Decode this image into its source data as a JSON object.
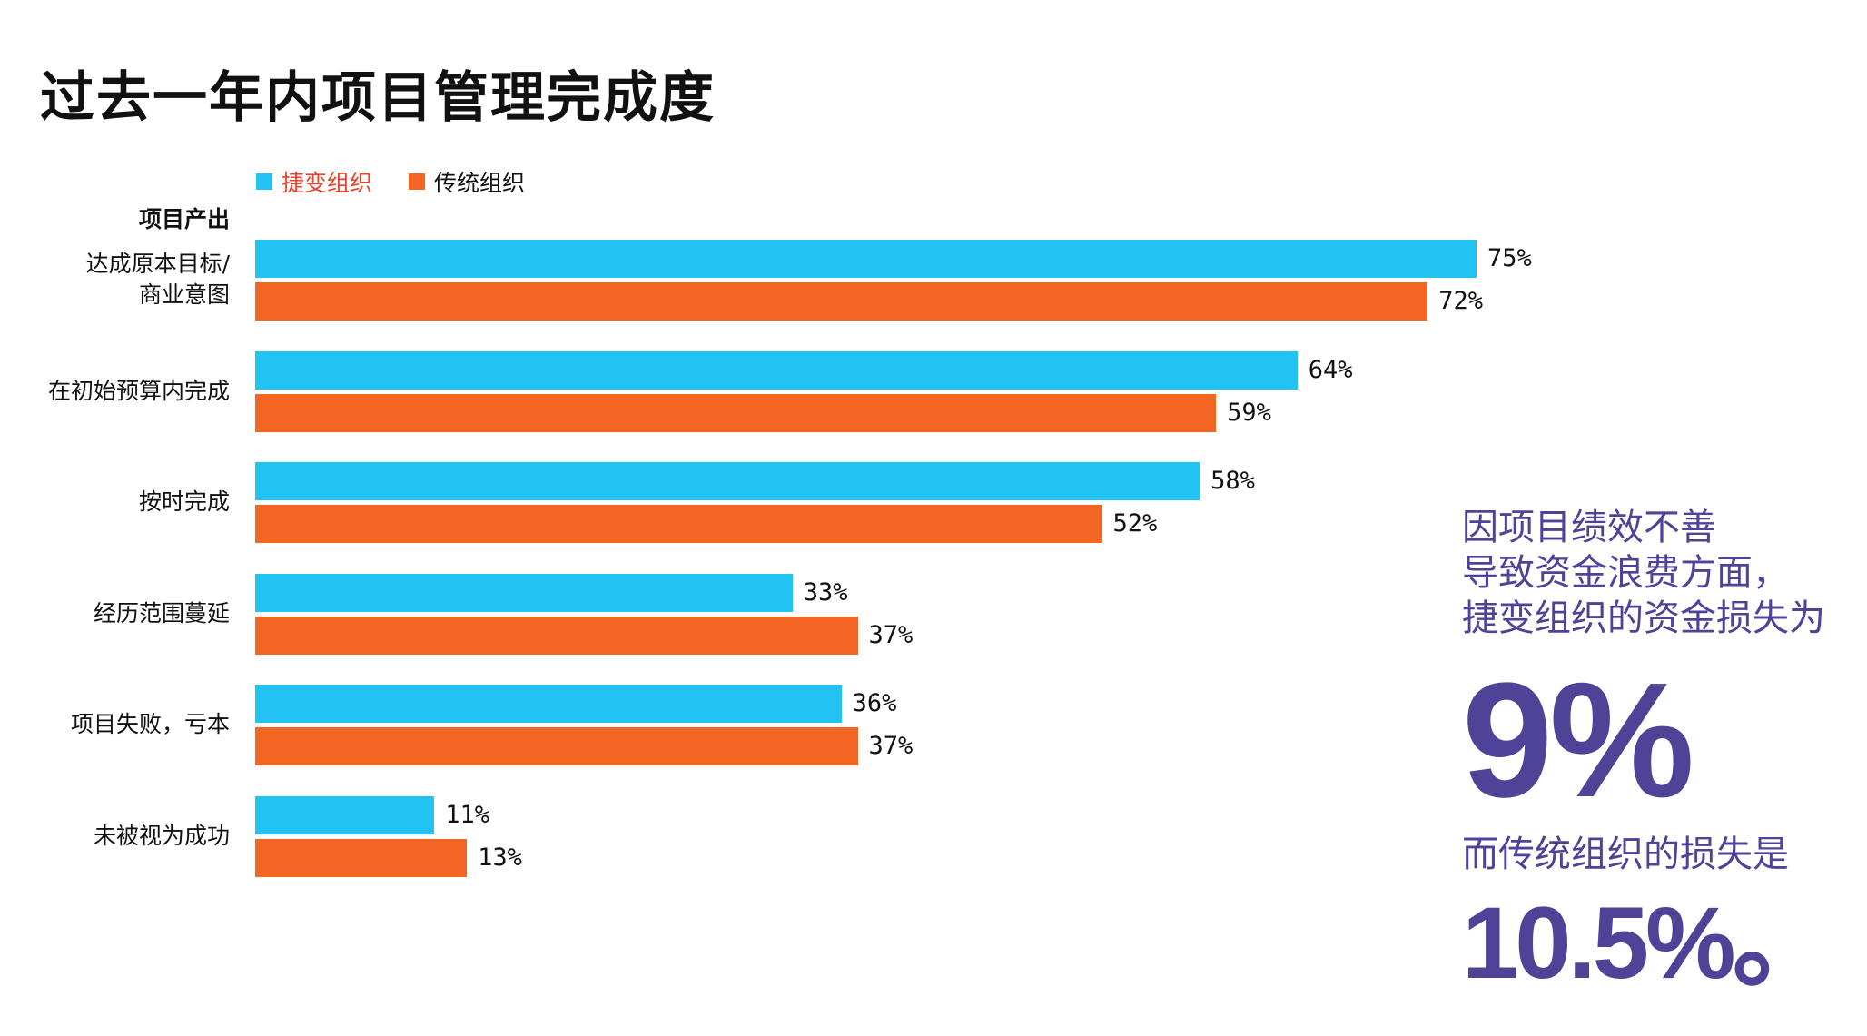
{
  "chart_data": {
    "type": "bar",
    "orientation": "horizontal",
    "title": "过去一年内项目管理完成度",
    "section_label": "项目产出",
    "categories": [
      "达成原本目标/\n商业意图",
      "在初始预算内完成",
      "按时完成",
      "经历范围蔓延",
      "项目失败，亏本",
      "未被视为成功"
    ],
    "series": [
      {
        "name": "捷变组织",
        "color": "#22C3F2",
        "legend_text_color": "#E8412C",
        "values": [
          75,
          64,
          58,
          33,
          36,
          11
        ]
      },
      {
        "name": "传统组织",
        "color": "#F26522",
        "legend_text_color": "#111111",
        "values": [
          72,
          59,
          52,
          37,
          37,
          13
        ]
      }
    ],
    "value_suffix": "%",
    "xlim": [
      0,
      75
    ],
    "grid": false,
    "legend_position": "top-left"
  },
  "callout": {
    "lines": [
      "因项目绩效不善",
      "导致资金浪费方面，"
    ],
    "line3_highlight": "捷变组织",
    "line3_rest": "的资金损失为",
    "agile_value": "9%",
    "middle": "而传统组织的损失是",
    "traditional_value": "10.5%。",
    "color": "#4F4398"
  }
}
